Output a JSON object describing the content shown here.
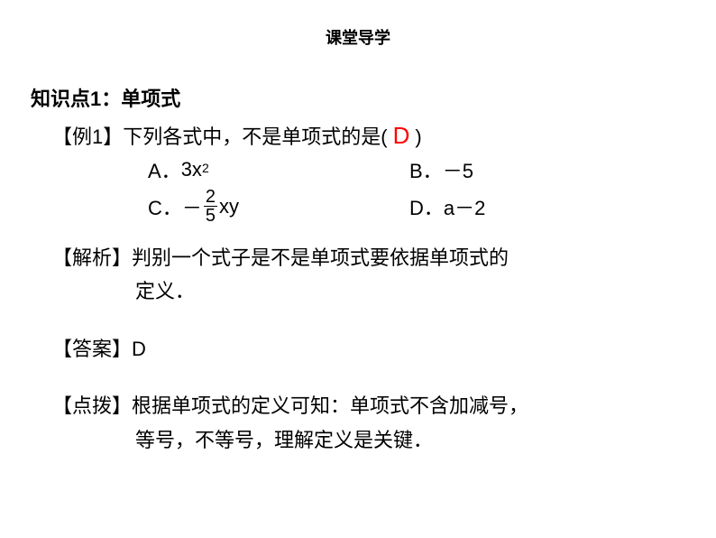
{
  "page_title": "课堂导学",
  "section_heading": "知识点1：单项式",
  "example": {
    "label": "【例1】",
    "question_pre": "下列各式中，不是单项式的是(",
    "answer_mark": "D",
    "question_post": ")"
  },
  "options": {
    "a": {
      "letter": "A．",
      "exp": "3x",
      "sup": "2"
    },
    "b": {
      "letter": "B．",
      "text": "－5"
    },
    "c": {
      "letter": "C．",
      "prefix": "－",
      "frac_num": "2",
      "frac_den": "5",
      "suffix": " xy"
    },
    "d": {
      "letter": "D．",
      "text": "a－2"
    }
  },
  "analysis": {
    "label": "【解析】",
    "line1": "判别一个式子是不是单项式要依据单项式的",
    "line2": "定义．"
  },
  "answer": {
    "label": "【答案】",
    "text": "D"
  },
  "hint": {
    "label": "【点拨】",
    "line1": "根据单项式的定义可知：单项式不含加减号，",
    "line2": "等号，不等号，理解定义是关键．"
  },
  "colors": {
    "answer_color": "#ff0000",
    "text_color": "#000000",
    "background": "#ffffff"
  },
  "typography": {
    "body_fontsize": 22,
    "title_fontsize": 18,
    "sup_fontsize": 14,
    "fraction_fontsize": 20,
    "answer_mark_fontsize": 26,
    "font_family": "Microsoft YaHei"
  }
}
